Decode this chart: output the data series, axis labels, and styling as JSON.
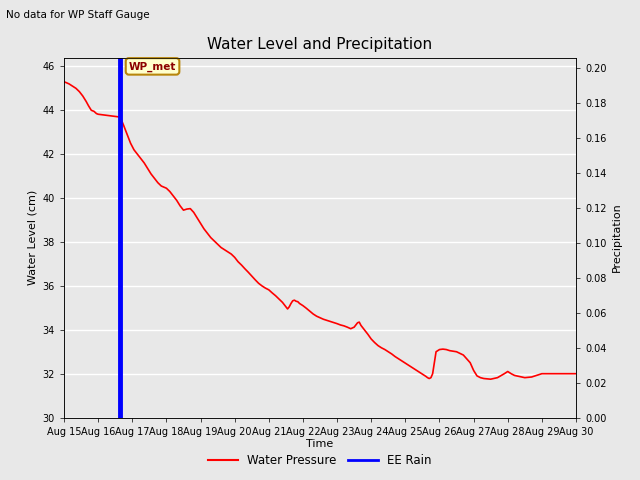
{
  "title": "Water Level and Precipitation",
  "top_left_text": "No data for WP Staff Gauge",
  "xlabel": "Time",
  "ylabel_left": "Water Level (cm)",
  "ylabel_right": "Precipitation",
  "annotation_label": "WP_met",
  "blue_line_x": 1.65,
  "ylim_left": [
    30,
    46.4
  ],
  "ylim_right": [
    0.0,
    0.206
  ],
  "yticks_left": [
    30,
    32,
    34,
    36,
    38,
    40,
    42,
    44,
    46
  ],
  "yticks_right": [
    0.0,
    0.02,
    0.04,
    0.06,
    0.08,
    0.1,
    0.12,
    0.14,
    0.16,
    0.18,
    0.2
  ],
  "xlim": [
    0,
    15
  ],
  "xtick_days": [
    0,
    1,
    2,
    3,
    4,
    5,
    6,
    7,
    8,
    9,
    10,
    11,
    12,
    13,
    14,
    15
  ],
  "xtick_labels": [
    "Aug 15",
    "Aug 16",
    "Aug 17",
    "Aug 18",
    "Aug 19",
    "Aug 20",
    "Aug 21",
    "Aug 22",
    "Aug 23",
    "Aug 24",
    "Aug 25",
    "Aug 26",
    "Aug 27",
    "Aug 28",
    "Aug 29",
    "Aug 30"
  ],
  "fig_bg_color": "#e8e8e8",
  "plot_bg_color": "#e8e8e8",
  "water_pressure_color": "red",
  "ee_rain_color": "blue",
  "legend_labels": [
    "Water Pressure",
    "EE Rain"
  ],
  "grid_color": "white",
  "water_pressure_data": [
    [
      0.0,
      45.3
    ],
    [
      0.08,
      45.25
    ],
    [
      0.15,
      45.2
    ],
    [
      0.25,
      45.1
    ],
    [
      0.35,
      45.0
    ],
    [
      0.45,
      44.85
    ],
    [
      0.55,
      44.65
    ],
    [
      0.65,
      44.4
    ],
    [
      0.72,
      44.2
    ],
    [
      0.8,
      44.0
    ],
    [
      0.88,
      43.95
    ],
    [
      0.95,
      43.85
    ],
    [
      1.0,
      43.82
    ],
    [
      1.1,
      43.8
    ],
    [
      1.2,
      43.78
    ],
    [
      1.3,
      43.76
    ],
    [
      1.4,
      43.74
    ],
    [
      1.5,
      43.72
    ],
    [
      1.6,
      43.7
    ],
    [
      1.65,
      43.68
    ],
    [
      1.75,
      43.3
    ],
    [
      1.85,
      42.9
    ],
    [
      1.95,
      42.5
    ],
    [
      2.05,
      42.2
    ],
    [
      2.15,
      42.0
    ],
    [
      2.25,
      41.8
    ],
    [
      2.35,
      41.6
    ],
    [
      2.45,
      41.35
    ],
    [
      2.55,
      41.1
    ],
    [
      2.65,
      40.9
    ],
    [
      2.75,
      40.7
    ],
    [
      2.85,
      40.55
    ],
    [
      2.95,
      40.48
    ],
    [
      3.0,
      40.45
    ],
    [
      3.1,
      40.3
    ],
    [
      3.2,
      40.1
    ],
    [
      3.3,
      39.9
    ],
    [
      3.4,
      39.65
    ],
    [
      3.5,
      39.45
    ],
    [
      3.6,
      39.5
    ],
    [
      3.7,
      39.52
    ],
    [
      3.8,
      39.35
    ],
    [
      3.9,
      39.1
    ],
    [
      4.0,
      38.85
    ],
    [
      4.1,
      38.6
    ],
    [
      4.2,
      38.4
    ],
    [
      4.3,
      38.2
    ],
    [
      4.4,
      38.05
    ],
    [
      4.5,
      37.9
    ],
    [
      4.6,
      37.75
    ],
    [
      4.7,
      37.65
    ],
    [
      4.8,
      37.55
    ],
    [
      4.9,
      37.45
    ],
    [
      5.0,
      37.3
    ],
    [
      5.1,
      37.1
    ],
    [
      5.2,
      36.95
    ],
    [
      5.3,
      36.78
    ],
    [
      5.4,
      36.62
    ],
    [
      5.5,
      36.45
    ],
    [
      5.6,
      36.28
    ],
    [
      5.7,
      36.12
    ],
    [
      5.8,
      36.0
    ],
    [
      5.9,
      35.9
    ],
    [
      6.0,
      35.82
    ],
    [
      6.1,
      35.68
    ],
    [
      6.2,
      35.55
    ],
    [
      6.3,
      35.4
    ],
    [
      6.4,
      35.25
    ],
    [
      6.5,
      35.05
    ],
    [
      6.55,
      34.95
    ],
    [
      6.6,
      35.05
    ],
    [
      6.65,
      35.2
    ],
    [
      6.7,
      35.32
    ],
    [
      6.75,
      35.35
    ],
    [
      6.8,
      35.3
    ],
    [
      6.85,
      35.28
    ],
    [
      6.9,
      35.2
    ],
    [
      7.0,
      35.1
    ],
    [
      7.1,
      34.98
    ],
    [
      7.2,
      34.85
    ],
    [
      7.3,
      34.72
    ],
    [
      7.4,
      34.62
    ],
    [
      7.5,
      34.55
    ],
    [
      7.6,
      34.48
    ],
    [
      7.7,
      34.43
    ],
    [
      7.8,
      34.38
    ],
    [
      7.9,
      34.33
    ],
    [
      8.0,
      34.28
    ],
    [
      8.1,
      34.22
    ],
    [
      8.2,
      34.18
    ],
    [
      8.3,
      34.12
    ],
    [
      8.4,
      34.05
    ],
    [
      8.5,
      34.12
    ],
    [
      8.6,
      34.32
    ],
    [
      8.65,
      34.35
    ],
    [
      8.7,
      34.2
    ],
    [
      8.8,
      34.0
    ],
    [
      8.9,
      33.8
    ],
    [
      9.0,
      33.58
    ],
    [
      9.1,
      33.42
    ],
    [
      9.2,
      33.28
    ],
    [
      9.3,
      33.18
    ],
    [
      9.4,
      33.1
    ],
    [
      9.5,
      33.0
    ],
    [
      9.6,
      32.9
    ],
    [
      9.7,
      32.78
    ],
    [
      9.8,
      32.68
    ],
    [
      9.9,
      32.58
    ],
    [
      10.0,
      32.48
    ],
    [
      10.1,
      32.38
    ],
    [
      10.2,
      32.28
    ],
    [
      10.3,
      32.18
    ],
    [
      10.4,
      32.08
    ],
    [
      10.5,
      31.98
    ],
    [
      10.6,
      31.88
    ],
    [
      10.65,
      31.82
    ],
    [
      10.7,
      31.78
    ],
    [
      10.75,
      31.82
    ],
    [
      10.8,
      32.0
    ],
    [
      10.9,
      33.0
    ],
    [
      11.0,
      33.1
    ],
    [
      11.1,
      33.12
    ],
    [
      11.2,
      33.1
    ],
    [
      11.3,
      33.05
    ],
    [
      11.5,
      33.0
    ],
    [
      11.7,
      32.85
    ],
    [
      11.9,
      32.5
    ],
    [
      12.0,
      32.15
    ],
    [
      12.1,
      31.9
    ],
    [
      12.2,
      31.82
    ],
    [
      12.3,
      31.78
    ],
    [
      12.5,
      31.75
    ],
    [
      12.7,
      31.82
    ],
    [
      12.9,
      32.0
    ],
    [
      13.0,
      32.1
    ],
    [
      13.1,
      32.0
    ],
    [
      13.2,
      31.92
    ],
    [
      13.5,
      31.82
    ],
    [
      13.7,
      31.85
    ],
    [
      14.0,
      32.0
    ],
    [
      14.5,
      32.0
    ],
    [
      15.0,
      32.0
    ]
  ]
}
